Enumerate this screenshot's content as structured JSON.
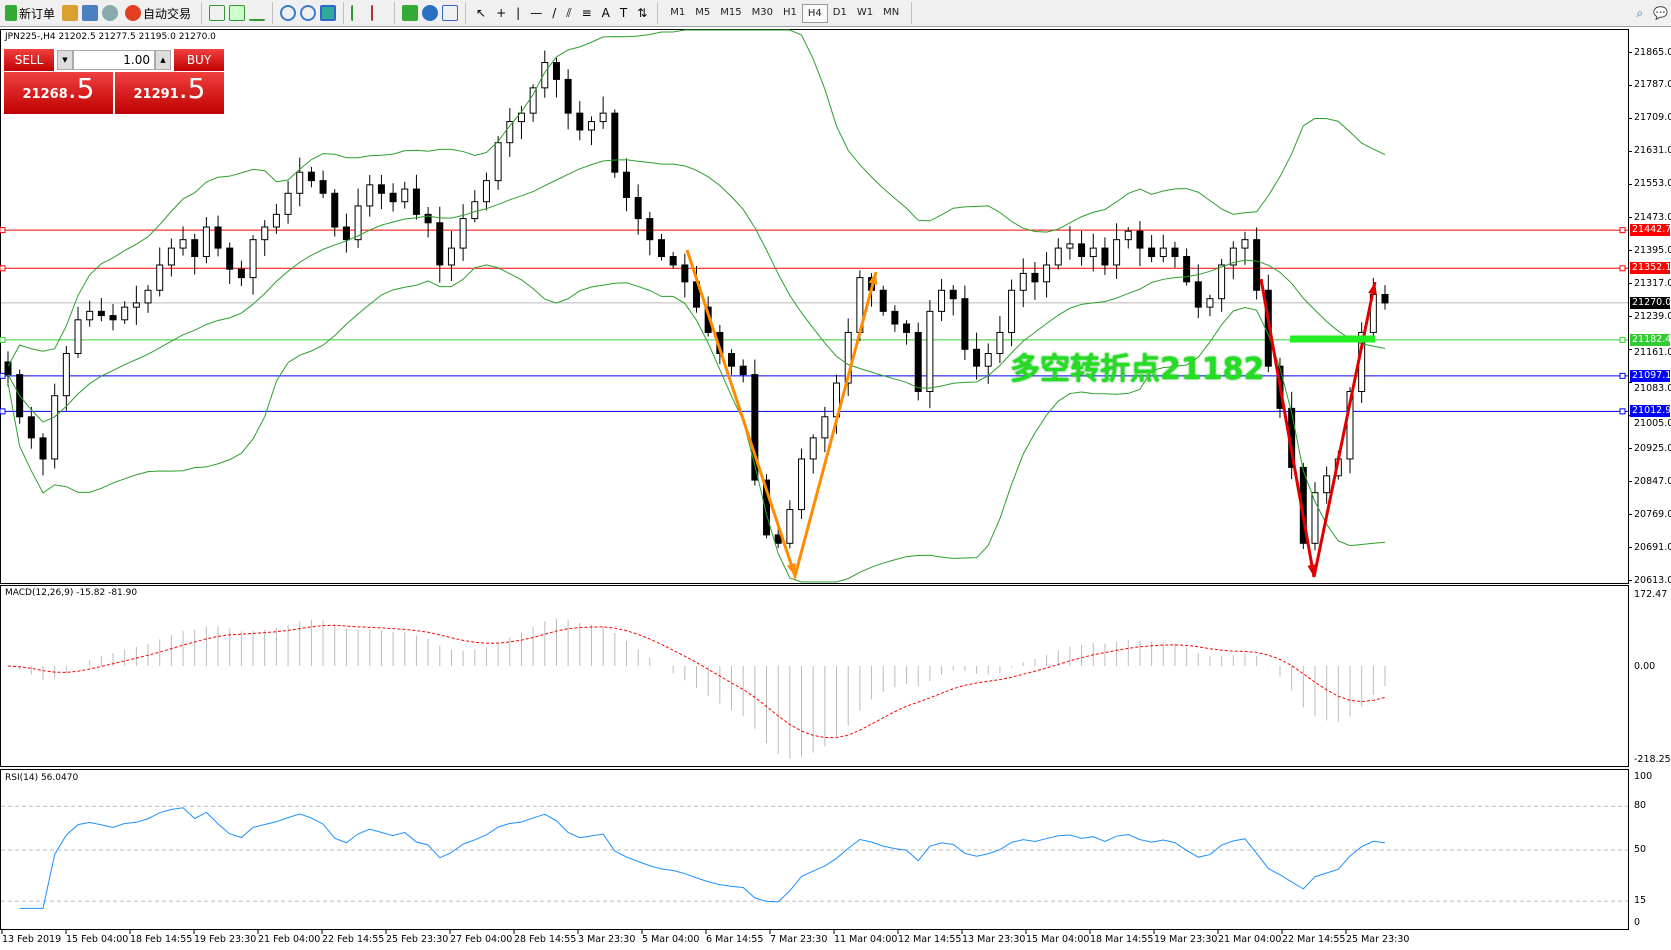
{
  "toolbar": {
    "new_order": "新订单",
    "auto_trading": "自动交易",
    "timeframes": [
      "M1",
      "M5",
      "M15",
      "M30",
      "H1",
      "H4",
      "D1",
      "W1",
      "MN"
    ],
    "selected_timeframe": "H4"
  },
  "chart": {
    "header": "JPN225-,H4  21202.5 21277.5 21195.0 21270.0",
    "annotation": "多空转折点21182"
  },
  "trade_panel": {
    "sell_label": "SELL",
    "buy_label": "BUY",
    "lot": "1.00",
    "sell_big": "21268",
    "sell_frac": ".5",
    "buy_big": "21291",
    "buy_frac": ".5"
  },
  "price_axis": [
    "21865.0",
    "21787.0",
    "21709.0",
    "21631.0",
    "21553.0",
    "21473.0",
    "21395.0",
    "21317.0",
    "21239.0",
    "21161.0",
    "21083.0",
    "21005.0",
    "20925.0",
    "20847.0",
    "20769.0",
    "20691.0",
    "20613.0"
  ],
  "levels": [
    {
      "value": "21442.7",
      "color": "#ff0000"
    },
    {
      "value": "21352.1",
      "color": "#ff0000"
    },
    {
      "value": "21270.0",
      "color": "#000000"
    },
    {
      "value": "21182.4",
      "color": "#32cd32"
    },
    {
      "value": "21097.1",
      "color": "#0000ff"
    },
    {
      "value": "21012.9",
      "color": "#0000ff"
    }
  ],
  "macd": {
    "label": "MACD(12,26,9) -15.82 -81.90",
    "axis": [
      "172.47",
      "0.00",
      "-218.25"
    ]
  },
  "rsi": {
    "label": "RSI(14) 56.0470",
    "axis": [
      "100",
      "80",
      "50",
      "15",
      "0"
    ]
  },
  "dates": [
    "13 Feb 2019",
    "15 Feb 04:00",
    "18 Feb 14:55",
    "19 Feb 23:30",
    "21 Feb 04:00",
    "22 Feb 14:55",
    "25 Feb 23:30",
    "27 Feb 04:00",
    "28 Feb 14:55",
    "3 Mar 23:30",
    "5 Mar 04:00",
    "6 Mar 14:55",
    "7 Mar 23:30",
    "11 Mar 04:00",
    "12 Mar 14:55",
    "13 Mar 23:30",
    "15 Mar 04:00",
    "18 Mar 14:55",
    "19 Mar 23:30",
    "21 Mar 04:00",
    "22 Mar 14:55",
    "25 Mar 23:30"
  ],
  "chart_data": {
    "type": "candlestick",
    "symbol": "JPN225-",
    "timeframe": "H4",
    "ylim": [
      20613,
      21865
    ],
    "closes": [
      21100,
      21000,
      20950,
      20900,
      21050,
      21150,
      21230,
      21250,
      21240,
      21230,
      21260,
      21270,
      21300,
      21360,
      21400,
      21420,
      21380,
      21450,
      21400,
      21350,
      21330,
      21420,
      21450,
      21480,
      21530,
      21580,
      21560,
      21530,
      21450,
      21420,
      21500,
      21550,
      21530,
      21510,
      21540,
      21480,
      21460,
      21360,
      21400,
      21470,
      21510,
      21560,
      21650,
      21700,
      21720,
      21780,
      21840,
      21800,
      21720,
      21680,
      21700,
      21720,
      21580,
      21520,
      21470,
      21420,
      21380,
      21360,
      21320,
      21260,
      21200,
      21150,
      21120,
      21100,
      20850,
      20720,
      20700,
      20780,
      20900,
      20950,
      21000,
      21080,
      21200,
      21330,
      21300,
      21250,
      21220,
      21200,
      21060,
      21250,
      21300,
      21280,
      21160,
      21120,
      21150,
      21200,
      21300,
      21340,
      21320,
      21360,
      21400,
      21410,
      21380,
      21400,
      21360,
      21420,
      21440,
      21400,
      21380,
      21400,
      21380,
      21320,
      21260,
      21280,
      21360,
      21400,
      21420,
      21300,
      21120,
      21020,
      20880,
      20700,
      20820,
      20860,
      20900,
      21060,
      21200,
      21290,
      21270
    ],
    "indicators": [
      "Bollinger Bands",
      "MACD(12,26,9)",
      "RSI(14)"
    ],
    "colors": {
      "bands": "#2ca02c",
      "macd_signal": "#ff0000",
      "rsi": "#1e90ff",
      "down_arrows_1": "#ff8c00",
      "arrows_2": "#e00000"
    }
  }
}
